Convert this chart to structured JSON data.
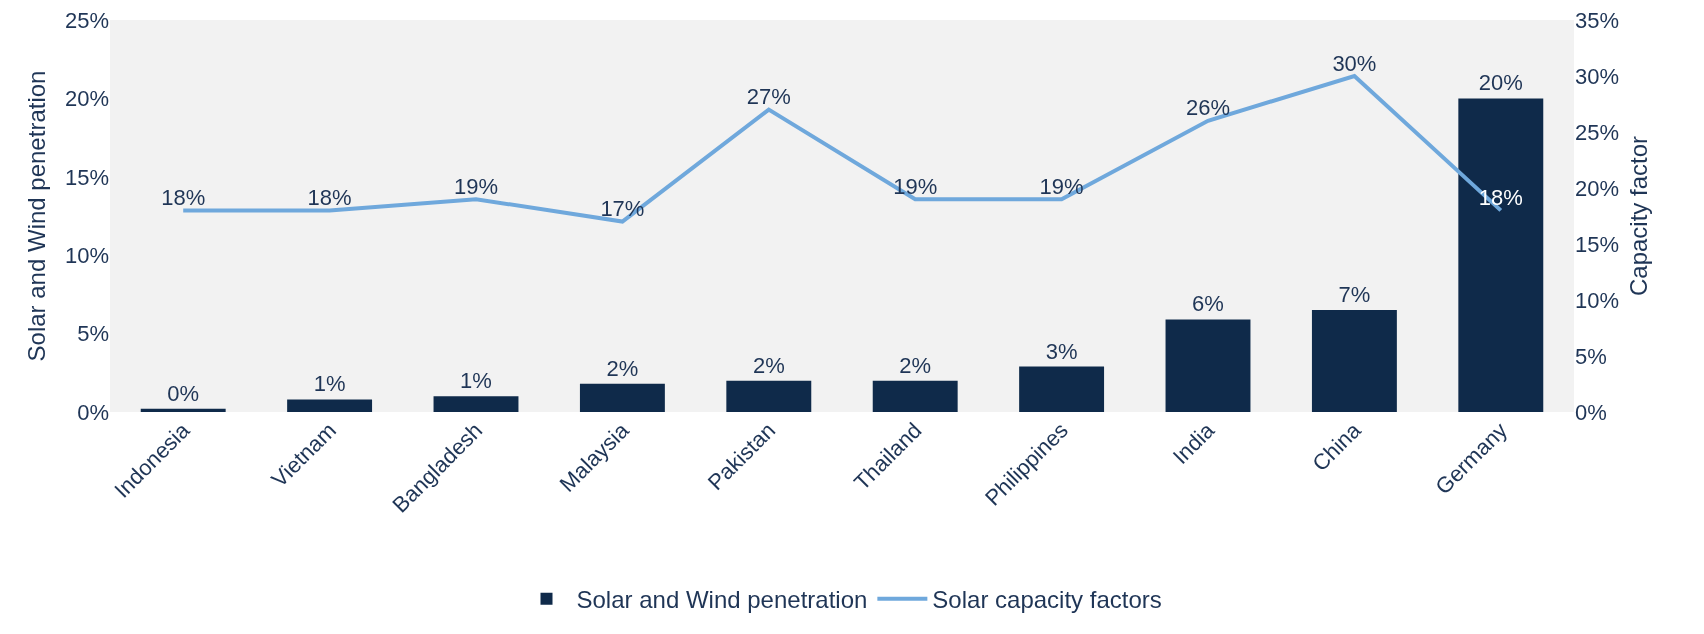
{
  "chart_data": {
    "type": "bar",
    "categories": [
      "Indonesia",
      "Vietnam",
      "Bangladesh",
      "Malaysia",
      "Pakistan",
      "Thailand",
      "Philippines",
      "India",
      "China",
      "Germany"
    ],
    "ylabel": "Solar and Wind penetration",
    "y2label": "Capacity factor",
    "ylim": [
      0,
      25
    ],
    "yticks": [
      {
        "value": 0,
        "label": "0%"
      },
      {
        "value": 5,
        "label": "5%"
      },
      {
        "value": 10,
        "label": "10%"
      },
      {
        "value": 15,
        "label": "15%"
      },
      {
        "value": 20,
        "label": "20%"
      },
      {
        "value": 25,
        "label": "25%"
      }
    ],
    "y2lim": [
      0,
      35
    ],
    "y2ticks": [
      {
        "value": 0,
        "label": "0%"
      },
      {
        "value": 5,
        "label": "5%"
      },
      {
        "value": 10,
        "label": "10%"
      },
      {
        "value": 15,
        "label": "15%"
      },
      {
        "value": 20,
        "label": "20%"
      },
      {
        "value": 25,
        "label": "25%"
      },
      {
        "value": 30,
        "label": "30%"
      },
      {
        "value": 35,
        "label": "35%"
      }
    ],
    "grid": false,
    "legend": "bottom",
    "series": [
      {
        "name": "Solar and Wind penetration",
        "color": "#0f2a4a",
        "values": [
          0.2,
          0.8,
          1.0,
          1.8,
          2.0,
          2.0,
          2.9,
          5.9,
          6.5,
          20
        ],
        "value_labels": [
          "0%",
          "1%",
          "1%",
          "2%",
          "2%",
          "2%",
          "3%",
          "6%",
          "7%",
          "20%"
        ]
      },
      {
        "name": "Solar capacity factors",
        "type": "line",
        "axis": "y2",
        "color": "#6fa8dc",
        "line_style": "solid",
        "marker": "none",
        "values": [
          18,
          18,
          19,
          17,
          27,
          19,
          19,
          26,
          30,
          18
        ],
        "value_labels": [
          "18%",
          "18%",
          "19%",
          "17%",
          "27%",
          "19%",
          "19%",
          "26%",
          "30%",
          "18%"
        ]
      }
    ]
  }
}
